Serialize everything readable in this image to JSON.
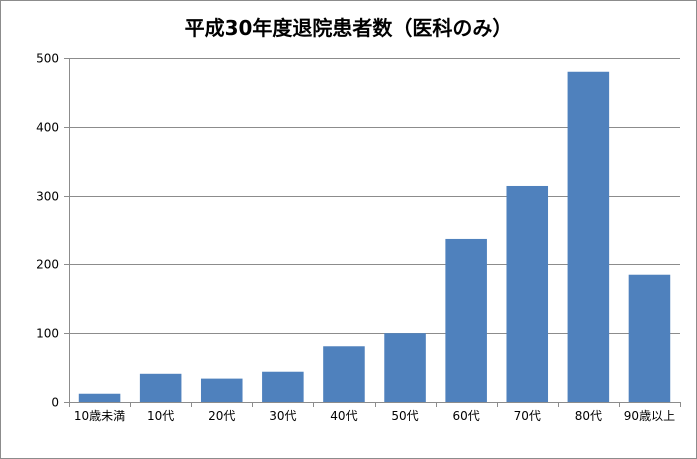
{
  "chart_data": {
    "type": "bar",
    "title": "平成30年度退院患者数（医科のみ）",
    "xlabel": "",
    "ylabel": "",
    "categories": [
      "10歳未満",
      "10代",
      "20代",
      "30代",
      "40代",
      "50代",
      "60代",
      "70代",
      "80代",
      "90歳以上"
    ],
    "values": [
      12,
      41,
      34,
      44,
      81,
      100,
      237,
      314,
      480,
      185
    ],
    "ylim": [
      0,
      500
    ],
    "yticks": [
      0,
      100,
      200,
      300,
      400,
      500
    ],
    "grid": true,
    "legend": "none",
    "bar_color": "#4f81bd",
    "grid_color": "#8c8c8c"
  }
}
